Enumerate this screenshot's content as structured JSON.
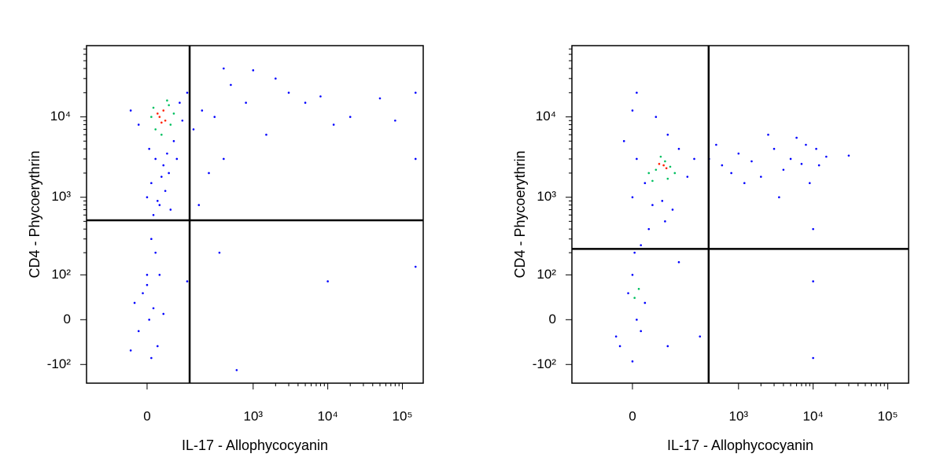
{
  "chart_data": [
    {
      "type": "scatter",
      "xscale": "biexponential",
      "yscale": "biexponential",
      "x_label": "IL-17 - Allophycocyanin",
      "y_label": "CD4 - Phycoerythrin",
      "xlim": [
        -240,
        190000
      ],
      "ylim": [
        -180,
        77000
      ],
      "xticks": [
        0,
        {
          "value": 1000,
          "label": "10³"
        },
        {
          "value": 10000,
          "label": "10⁴"
        },
        {
          "value": 100000,
          "label": "10⁵"
        }
      ],
      "yticks": [
        {
          "value": -100,
          "label": "-10²"
        },
        0,
        {
          "value": 100,
          "label": "10²"
        },
        {
          "value": 1000,
          "label": "10³"
        },
        {
          "value": 10000,
          "label": "10⁴"
        }
      ],
      "gates": {
        "x": 131,
        "y": 515
      },
      "series": [
        {
          "color": "#0000ff",
          "x": [
            20,
            40,
            10,
            55,
            30,
            60,
            15,
            45,
            5,
            70,
            25,
            50,
            35,
            0,
            80,
            -20,
            -40,
            90,
            100,
            120,
            150,
            200,
            300,
            500,
            800,
            1500,
            3000,
            5000,
            8000,
            12000,
            20000,
            50000,
            80000,
            2000,
            400,
            250,
            180,
            10,
            20,
            0,
            -10,
            15,
            -20,
            25,
            5,
            -30,
            10,
            0,
            30,
            -40,
            40,
            350,
            10000,
            150000,
            600,
            120,
            150000,
            150000,
            400,
            1000
          ],
          "values": [
            3000,
            2500,
            1500,
            2000,
            800,
            700,
            600,
            1200,
            4000,
            5000,
            900,
            3500,
            1800,
            1000,
            3000,
            8000,
            12000,
            15000,
            9000,
            20000,
            7000,
            12000,
            10000,
            25000,
            15000,
            6000,
            20000,
            15000,
            18000,
            8000,
            10000,
            17000,
            9000,
            30000,
            3000,
            2000,
            800,
            300,
            200,
            100,
            50,
            20,
            -20,
            -50,
            0,
            30,
            -80,
            70,
            100,
            -60,
            10,
            200,
            80,
            130,
            -120,
            80,
            3000,
            20000,
            40000,
            38000
          ]
        },
        {
          "color": "#00c060",
          "x": [
            15,
            55,
            60,
            20,
            50,
            10,
            70,
            35
          ],
          "values": [
            13000,
            14000,
            8000,
            7000,
            16000,
            10000,
            11000,
            6000
          ]
        },
        {
          "color": "#ff2000",
          "x": [
            30,
            45,
            25,
            40,
            35
          ],
          "values": [
            10000,
            9000,
            11000,
            12000,
            8500
          ]
        }
      ]
    },
    {
      "type": "scatter",
      "xscale": "biexponential",
      "yscale": "biexponential",
      "x_label": "IL-17 - Allophycocyanin",
      "y_label": "CD4 - Phycoerythrin",
      "xlim": [
        -240,
        190000
      ],
      "ylim": [
        -180,
        77000
      ],
      "xticks": [
        0,
        {
          "value": 1000,
          "label": "10³"
        },
        {
          "value": 10000,
          "label": "10⁴"
        },
        {
          "value": 100000,
          "label": "10⁵"
        }
      ],
      "yticks": [
        {
          "value": -100,
          "label": "-10²"
        },
        0,
        {
          "value": 100,
          "label": "10²"
        },
        {
          "value": 1000,
          "label": "10³"
        },
        {
          "value": 10000,
          "label": "10⁴"
        }
      ],
      "gates": {
        "x": 395,
        "y": 224
      },
      "series": [
        {
          "color": "#0000ff",
          "x": [
            0,
            10,
            -20,
            30,
            150,
            200,
            250,
            100,
            80,
            120,
            50,
            0,
            10,
            60,
            400,
            600,
            800,
            1000,
            1500,
            2000,
            3000,
            4000,
            5000,
            7000,
            9000,
            12000,
            15000,
            2500,
            6000,
            1200,
            500,
            3500,
            8000,
            11000,
            30000,
            40,
            90,
            20,
            5,
            0,
            -10,
            10,
            -30,
            20,
            0,
            -40,
            30,
            100,
            150,
            10000,
            10000,
            10000,
            300
          ],
          "values": [
            1000,
            3000,
            5000,
            1500,
            4000,
            1800,
            3000,
            6000,
            900,
            700,
            800,
            12000,
            20000,
            10000,
            3000,
            2500,
            2000,
            3500,
            2800,
            1800,
            4000,
            2200,
            3000,
            2600,
            1500,
            2500,
            3200,
            6000,
            5500,
            1500,
            4500,
            1000,
            4500,
            4000,
            3300,
            400,
            500,
            250,
            200,
            100,
            50,
            0,
            -50,
            -20,
            -90,
            -30,
            30,
            -50,
            150,
            80,
            -80,
            400,
            -30
          ]
        },
        {
          "color": "#00c060",
          "x": [
            60,
            90,
            40,
            110,
            75,
            130,
            50,
            100,
            5,
            15
          ],
          "values": [
            2200,
            2800,
            2000,
            2400,
            3200,
            2000,
            1600,
            1700,
            40,
            60
          ]
        },
        {
          "color": "#ff2000",
          "x": [
            85,
            95,
            70
          ],
          "values": [
            2500,
            2300,
            2600
          ]
        }
      ]
    }
  ]
}
